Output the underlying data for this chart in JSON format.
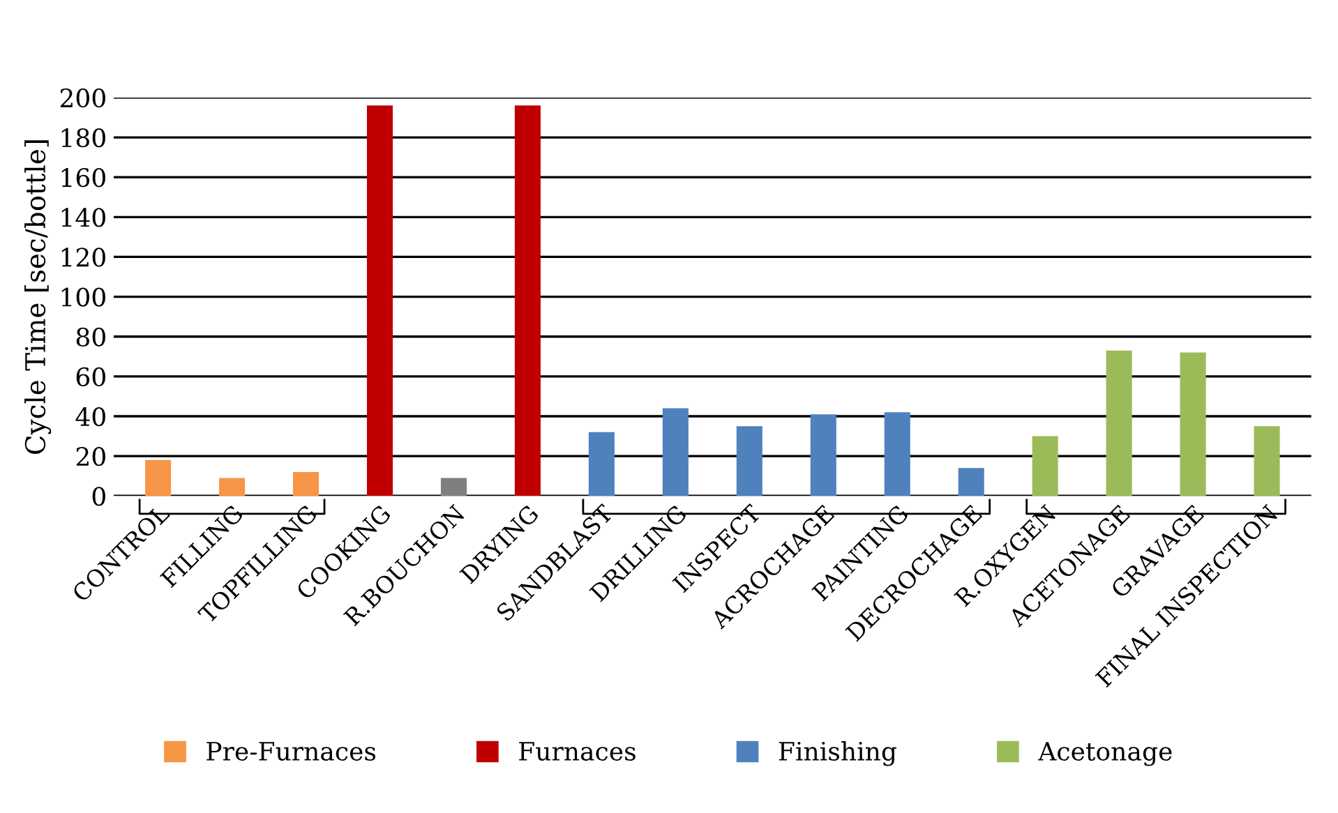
{
  "chart_data": {
    "type": "bar",
    "ylabel": "Cycle Time [sec/bottle]",
    "categories": [
      "CONTROL",
      "FILLING",
      "TOPFILLING",
      "COOKING",
      "R.BOUCHON",
      "DRYING",
      "SANDBLAST",
      "DRILLING",
      "INSPECT",
      "ACROCHAGE",
      "PAINTING",
      "DECROCHAGE",
      "R.OXYGEN",
      "ACETONAGE",
      "GRAVAGE",
      "FINAL INSPECTION"
    ],
    "series": [
      {
        "name": "Pre-Furnaces",
        "color": "#f79646",
        "values": [
          18,
          9,
          12,
          null,
          null,
          null,
          null,
          null,
          null,
          null,
          null,
          null,
          null,
          null,
          null,
          null
        ]
      },
      {
        "name": "Furnaces",
        "color": "#c00000",
        "values": [
          null,
          null,
          null,
          196,
          null,
          196,
          null,
          null,
          null,
          null,
          null,
          null,
          null,
          null,
          null,
          null
        ]
      },
      {
        "color": "#7f7f7f",
        "values": [
          null,
          null,
          null,
          null,
          9,
          null,
          null,
          null,
          null,
          null,
          null,
          null,
          null,
          null,
          null,
          null
        ]
      },
      {
        "name": "Finishing",
        "color": "#4f81bd",
        "values": [
          null,
          null,
          null,
          null,
          null,
          null,
          32,
          44,
          35,
          41,
          42,
          14,
          null,
          null,
          null,
          null
        ]
      },
      {
        "name": "Acetonage",
        "color": "#9bbb59",
        "values": [
          null,
          null,
          null,
          null,
          null,
          null,
          null,
          null,
          null,
          null,
          null,
          null,
          30,
          73,
          72,
          35
        ]
      }
    ],
    "ylim": [
      0,
      200
    ],
    "yticks": [
      0,
      20,
      40,
      60,
      80,
      100,
      120,
      140,
      160,
      180,
      200
    ],
    "grid": "y",
    "legend": "bottom"
  }
}
